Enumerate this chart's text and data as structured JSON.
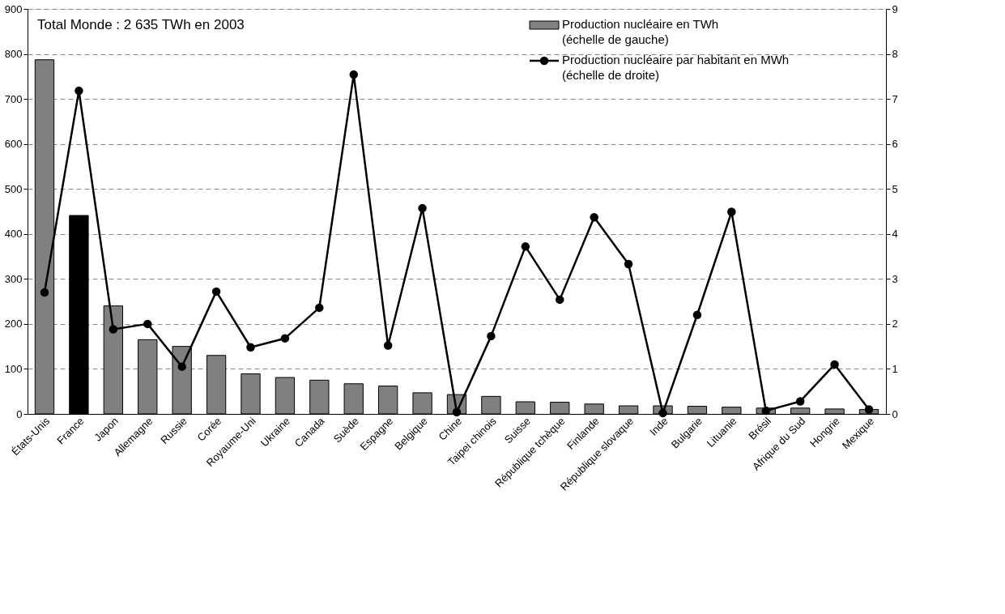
{
  "chart_data": {
    "type": "bar",
    "categories": [
      "États-Unis",
      "France",
      "Japon",
      "Allemagne",
      "Russie",
      "Corée",
      "Royaume-Uni",
      "Ukraine",
      "Canada",
      "Suède",
      "Espagne",
      "Belgique",
      "Chine",
      "Taipei chinois",
      "Suisse",
      "République tchèque",
      "Finlande",
      "République slovaque",
      "Inde",
      "Bulgarie",
      "Lituanie",
      "Brésil",
      "Afrique du Sud",
      "Hongrie",
      "Mexique"
    ],
    "series": [
      {
        "name": "Production nucléaire en TWh (échelle de gauche)",
        "color": "#808080",
        "colors": [
          "#808080",
          "#000000",
          "#808080",
          "#808080",
          "#808080",
          "#808080",
          "#808080",
          "#808080",
          "#808080",
          "#808080",
          "#808080",
          "#808080",
          "#808080",
          "#808080",
          "#808080",
          "#808080",
          "#808080",
          "#808080",
          "#808080",
          "#808080",
          "#808080",
          "#808080",
          "#808080",
          "#808080",
          "#808080"
        ],
        "values": [
          787,
          441,
          240,
          165,
          150,
          130,
          89,
          81,
          75,
          67,
          62,
          47,
          43,
          39,
          27,
          26,
          22,
          18,
          18,
          17,
          15,
          13,
          13,
          11,
          10
        ]
      },
      {
        "name": "Production nucléaire par habitant en MWh (échelle de droite)",
        "type": "line",
        "axis": "y2",
        "color": "#000000",
        "values": [
          2.7,
          7.18,
          1.88,
          2.0,
          1.05,
          2.72,
          1.48,
          1.68,
          2.36,
          7.54,
          1.52,
          4.57,
          0.04,
          1.73,
          3.72,
          2.54,
          4.37,
          3.33,
          0.02,
          2.2,
          4.49,
          0.07,
          0.28,
          1.1,
          0.1
        ]
      }
    ],
    "ylim": [
      0,
      900
    ],
    "yticks": [
      0,
      100,
      200,
      300,
      400,
      500,
      600,
      700,
      800,
      900
    ],
    "y2lim": [
      0,
      9
    ],
    "y2ticks": [
      0,
      1,
      2,
      3,
      4,
      5,
      6,
      7,
      8,
      9
    ],
    "grid": "y",
    "legend": "top right",
    "marker": "circle",
    "line_style": "solid",
    "annotations": [
      "Total Monde : 2 635   TWh en 2003"
    ]
  }
}
